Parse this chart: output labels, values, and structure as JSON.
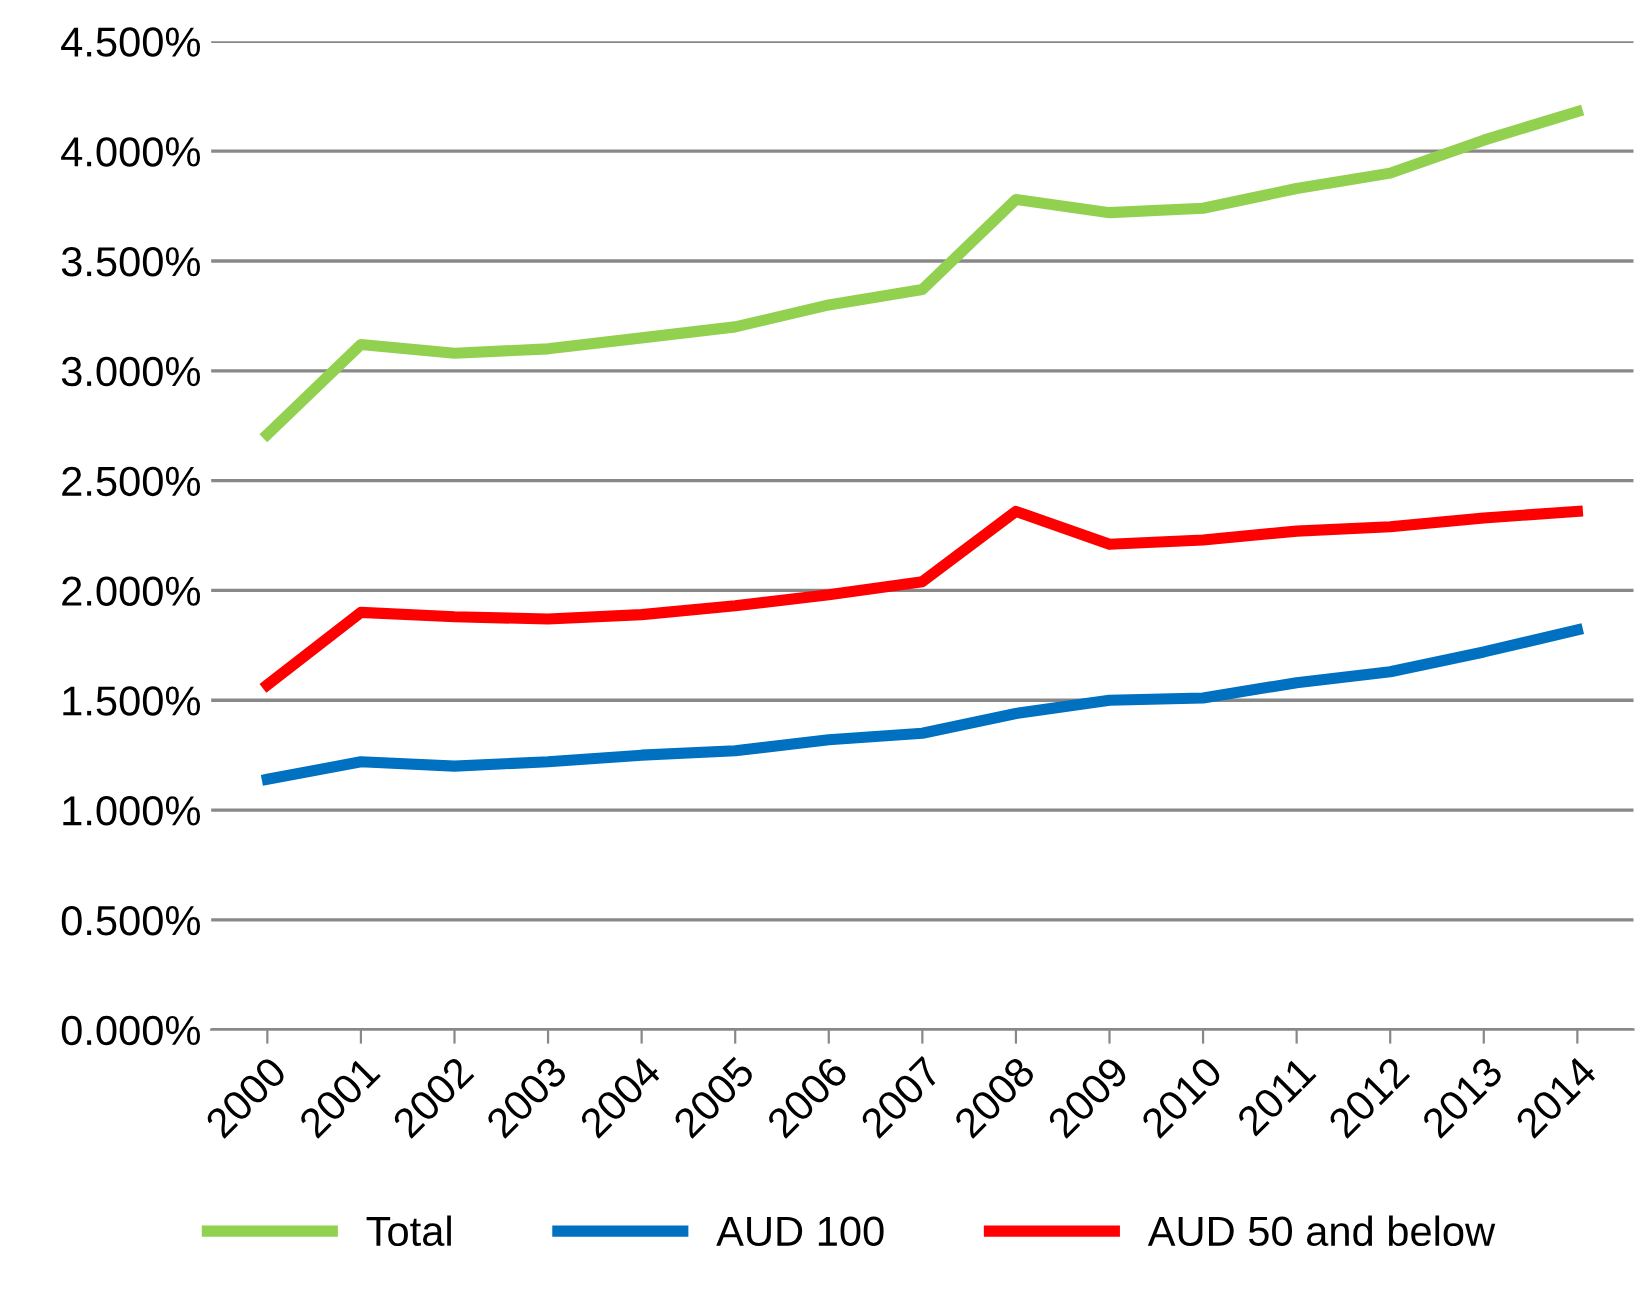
{
  "chart_data": {
    "type": "line",
    "categories": [
      "2000",
      "2001",
      "2002",
      "2003",
      "2004",
      "2005",
      "2006",
      "2007",
      "2008",
      "2009",
      "2010",
      "2011",
      "2012",
      "2013",
      "2014"
    ],
    "series": [
      {
        "name": "Total",
        "color": "#92d050",
        "values": [
          2.71,
          3.12,
          3.08,
          3.1,
          3.15,
          3.2,
          3.3,
          3.37,
          3.78,
          3.72,
          3.74,
          3.83,
          3.9,
          4.05,
          4.18
        ]
      },
      {
        "name": "AUD 100",
        "color": "#0070c0",
        "values": [
          1.14,
          1.22,
          1.2,
          1.22,
          1.25,
          1.27,
          1.32,
          1.35,
          1.44,
          1.5,
          1.51,
          1.58,
          1.63,
          1.72,
          1.82
        ]
      },
      {
        "name": "AUD 50 and below",
        "color": "#ff0000",
        "values": [
          1.57,
          1.9,
          1.88,
          1.87,
          1.89,
          1.93,
          1.98,
          2.04,
          2.36,
          2.21,
          2.23,
          2.27,
          2.29,
          2.33,
          2.36
        ]
      }
    ],
    "ylim": [
      0,
      4.5
    ],
    "yticks": [
      {
        "value": 0,
        "label": "0.000%"
      },
      {
        "value": 0.5,
        "label": "0.500%"
      },
      {
        "value": 1,
        "label": "1.000%"
      },
      {
        "value": 1.5,
        "label": "1.500%"
      },
      {
        "value": 2,
        "label": "2.000%"
      },
      {
        "value": 2.5,
        "label": "2.500%"
      },
      {
        "value": 3,
        "label": "3.000%"
      },
      {
        "value": 3.5,
        "label": "3.500%"
      },
      {
        "value": 4,
        "label": "4.000%"
      },
      {
        "value": 4.5,
        "label": "4.500%"
      }
    ],
    "grid": "y",
    "legend": "bottom",
    "marker": "none",
    "line_style": "solid"
  }
}
